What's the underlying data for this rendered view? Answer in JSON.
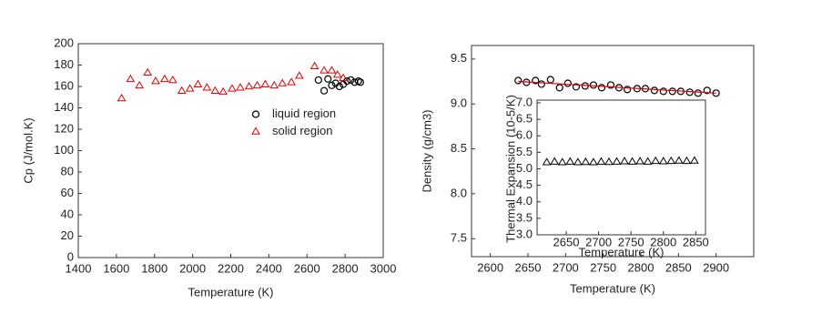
{
  "chart_data": [
    {
      "type": "scatter",
      "xlabel": "Temperature (K)",
      "ylabel": "Cp (J/mol.K)",
      "xlim": [
        1400,
        3000
      ],
      "xticks": [
        1400,
        1600,
        1800,
        2000,
        2200,
        2400,
        2600,
        2800,
        3000
      ],
      "ylim": [
        0,
        200
      ],
      "yticks": [
        0,
        20,
        40,
        60,
        80,
        100,
        120,
        140,
        160,
        180,
        200
      ],
      "legend": "right",
      "series": [
        {
          "name": "liquid region",
          "color": "#000000",
          "marker": "circle",
          "x": [
            2660,
            2690,
            2710,
            2730,
            2750,
            2770,
            2790,
            2810,
            2830,
            2850,
            2870,
            2880
          ],
          "values": [
            166,
            156,
            167,
            161,
            163,
            160,
            162,
            165,
            166,
            164,
            165,
            164
          ]
        },
        {
          "name": "solid region",
          "color": "#e00000",
          "marker": "triangle",
          "x": [
            1627,
            1674,
            1721,
            1764,
            1806,
            1853,
            1896,
            1943,
            1986,
            2028,
            2075,
            2118,
            2160,
            2207,
            2250,
            2296,
            2339,
            2381,
            2428,
            2471,
            2518,
            2560,
            2640,
            2690,
            2730,
            2760,
            2790
          ],
          "values": [
            149,
            167,
            161,
            173,
            165,
            167,
            166,
            156,
            158,
            162,
            159,
            156,
            155,
            158,
            159,
            160,
            161,
            162,
            161,
            163,
            164,
            170,
            179,
            175,
            175,
            171,
            168
          ]
        }
      ]
    },
    {
      "type": "scatter",
      "xlabel": "Temperature (K)",
      "ylabel": "Density (g/cm3)",
      "xlim": [
        2575,
        2950
      ],
      "xticks": [
        2600,
        2650,
        2700,
        2750,
        2800,
        2850,
        2900
      ],
      "ylim": [
        7.3,
        9.65
      ],
      "yticks": [
        {
          "value": 7.5,
          "label": "7.5"
        },
        {
          "value": 8,
          "label": "8.0"
        },
        {
          "value": 8.5,
          "label": "8.5"
        },
        {
          "value": 9,
          "label": "9.0"
        },
        {
          "value": 9.5,
          "label": "9.5"
        }
      ],
      "series": [
        {
          "color": "#000000",
          "marker": "circle",
          "x": [
            2637,
            2648,
            2660,
            2668,
            2680,
            2692,
            2703,
            2714,
            2726,
            2737,
            2748,
            2760,
            2771,
            2782,
            2795,
            2806,
            2818,
            2830,
            2842,
            2853,
            2865,
            2876,
            2888,
            2900
          ],
          "values": [
            9.26,
            9.24,
            9.26,
            9.22,
            9.27,
            9.18,
            9.23,
            9.19,
            9.2,
            9.21,
            9.18,
            9.21,
            9.18,
            9.16,
            9.17,
            9.17,
            9.15,
            9.14,
            9.14,
            9.14,
            9.13,
            9.12,
            9.15,
            9.12
          ]
        },
        {
          "color": "#e00000",
          "marker": "line",
          "x": [
            2637,
            2900
          ],
          "values": [
            9.25,
            9.12
          ]
        }
      ]
    },
    {
      "type": "scatter",
      "xlabel": "Temperature (K)",
      "ylabel": "Thermal Expansion (10-5/K)",
      "xlim": [
        2605,
        2865
      ],
      "xticks": [
        2650,
        2700,
        2750,
        2800,
        2850
      ],
      "ylim": [
        3,
        7
      ],
      "yticks": [
        {
          "value": 3,
          "label": "3.0"
        },
        {
          "value": 3.5,
          "label": "3.5"
        },
        {
          "value": 4,
          "label": "4.0"
        },
        {
          "value": 4.5,
          "label": "4.5"
        },
        {
          "value": 5,
          "label": "5.0"
        },
        {
          "value": 5.5,
          "label": "5.5"
        },
        {
          "value": 6,
          "label": "6.0"
        },
        {
          "value": 6.5,
          "label": "6.5"
        },
        {
          "value": 7,
          "label": "7.0"
        }
      ],
      "series": [
        {
          "color": "#000000",
          "marker": "triangle",
          "x": [
            2620,
            2632,
            2644,
            2656,
            2668,
            2680,
            2692,
            2704,
            2716,
            2728,
            2740,
            2752,
            2764,
            2776,
            2788,
            2800,
            2812,
            2824,
            2836,
            2848
          ],
          "values": [
            5.2,
            5.22,
            5.2,
            5.22,
            5.2,
            5.21,
            5.2,
            5.22,
            5.21,
            5.22,
            5.23,
            5.22,
            5.23,
            5.22,
            5.24,
            5.23,
            5.24,
            5.25,
            5.24,
            5.25
          ]
        }
      ]
    }
  ]
}
